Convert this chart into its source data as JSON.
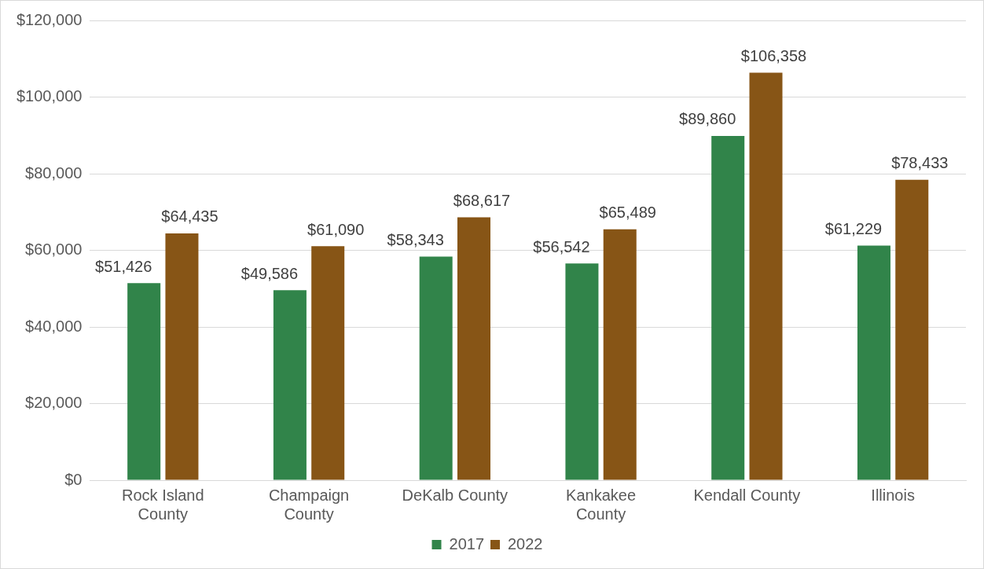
{
  "chart_data": {
    "type": "bar",
    "categories": [
      "Rock Island County",
      "Champaign County",
      "DeKalb County",
      "Kankakee County",
      "Kendall County",
      "Illinois"
    ],
    "series": [
      {
        "name": "2017",
        "color": "#31844a",
        "values": [
          51426,
          49586,
          58343,
          56542,
          89860,
          61229
        ],
        "value_labels": [
          "$51,426",
          "$49,586",
          "$58,343",
          "$56,542",
          "$89,860",
          "$61,229"
        ]
      },
      {
        "name": "2022",
        "color": "#875516",
        "values": [
          64435,
          61090,
          68617,
          65489,
          106358,
          78433
        ],
        "value_labels": [
          "$64,435",
          "$61,090",
          "$68,617",
          "$65,489",
          "$106,358",
          "$78,433"
        ]
      }
    ],
    "ylim": [
      0,
      120000
    ],
    "yticks": [
      {
        "value": 0,
        "label": "$0"
      },
      {
        "value": 20000,
        "label": "$20,000"
      },
      {
        "value": 40000,
        "label": "$40,000"
      },
      {
        "value": 60000,
        "label": "$60,000"
      },
      {
        "value": 80000,
        "label": "$80,000"
      },
      {
        "value": 100000,
        "label": "$100,000"
      },
      {
        "value": 120000,
        "label": "$120,000"
      }
    ],
    "grid": "y",
    "legend": "bottom"
  }
}
